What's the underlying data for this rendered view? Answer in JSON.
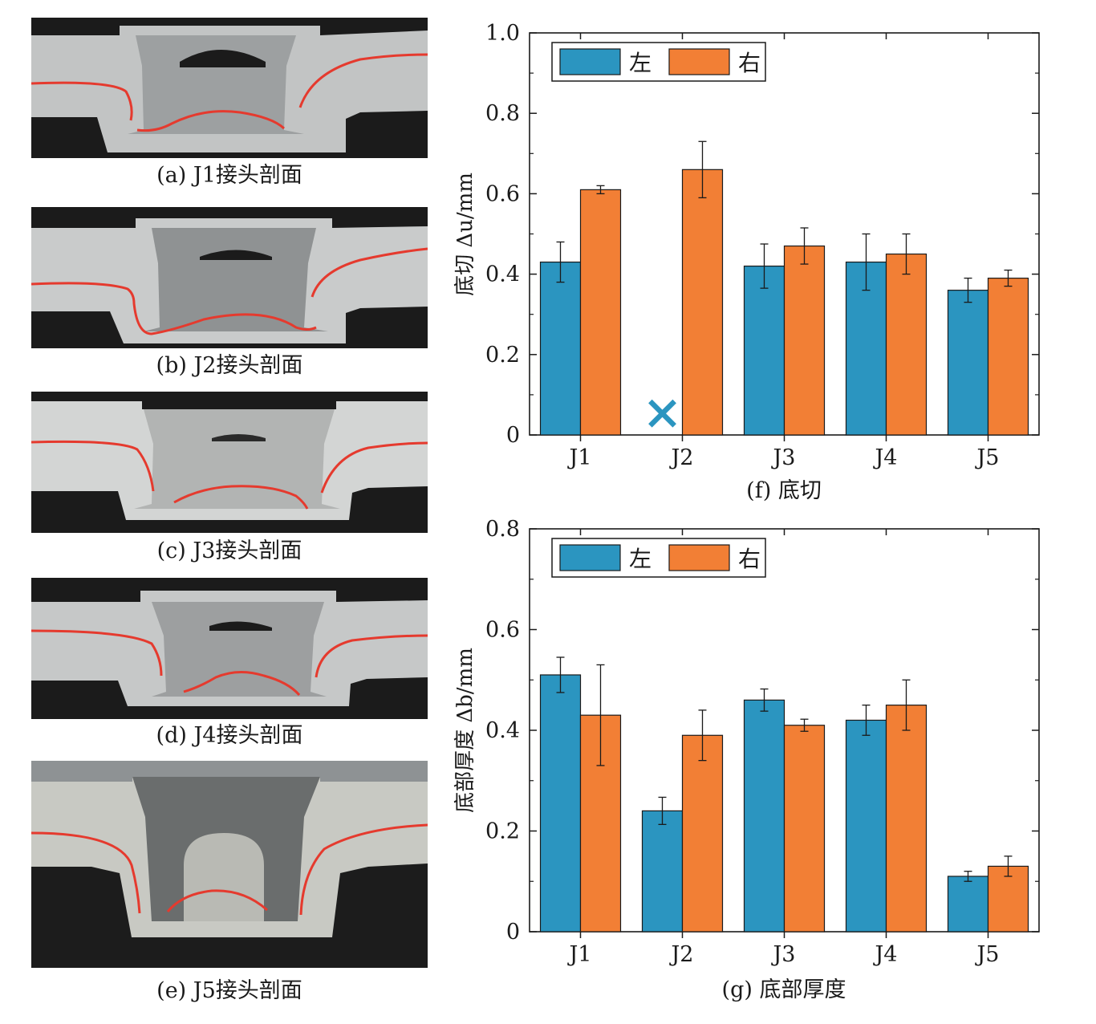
{
  "panels": [
    {
      "caption": "(a) J1接头剖面"
    },
    {
      "caption": "(b) J2接头剖面"
    },
    {
      "caption": "(c) J3接头剖面"
    },
    {
      "caption": "(d) J4接头剖面"
    },
    {
      "caption": "(e) J5接头剖面"
    }
  ],
  "colors": {
    "left": "#2b95c0",
    "right": "#f27f35",
    "curve": "#e53a2e",
    "missing": "#2b95c0"
  },
  "chart_data": [
    {
      "id": "f",
      "type": "bar",
      "title": "(f) 底切",
      "xlabel": "(f) 底切",
      "ylabel": "底切 Δu/mm",
      "ylim": [
        0,
        1.0
      ],
      "yticks": [
        0,
        0.2,
        0.4,
        0.6,
        0.8,
        1.0
      ],
      "ytick_labels": [
        "0",
        "0.2",
        "0.4",
        "0.6",
        "0.8",
        "1.0"
      ],
      "categories": [
        "J1",
        "J2",
        "J3",
        "J4",
        "J5"
      ],
      "legend_position": "top-left",
      "series": [
        {
          "name": "左",
          "values": [
            0.43,
            null,
            0.42,
            0.43,
            0.36
          ],
          "errors": [
            0.05,
            null,
            0.055,
            0.07,
            0.03
          ]
        },
        {
          "name": "右",
          "values": [
            0.61,
            0.66,
            0.47,
            0.45,
            0.39
          ],
          "errors": [
            0.01,
            0.07,
            0.045,
            0.05,
            0.02
          ]
        }
      ],
      "missing_marker": {
        "series": "左",
        "category": "J2",
        "symbol": "×"
      }
    },
    {
      "id": "g",
      "type": "bar",
      "title": "(g) 底部厚度",
      "xlabel": "(g) 底部厚度",
      "ylabel": "底部厚度 Δb/mm",
      "ylim": [
        0,
        0.8
      ],
      "yticks": [
        0,
        0.2,
        0.4,
        0.6,
        0.8
      ],
      "ytick_labels": [
        "0",
        "0.2",
        "0.4",
        "0.6",
        "0.8"
      ],
      "categories": [
        "J1",
        "J2",
        "J3",
        "J4",
        "J5"
      ],
      "legend_position": "top-left",
      "series": [
        {
          "name": "左",
          "values": [
            0.51,
            0.24,
            0.46,
            0.42,
            0.11
          ],
          "errors": [
            0.035,
            0.027,
            0.022,
            0.03,
            0.01
          ]
        },
        {
          "name": "右",
          "values": [
            0.43,
            0.39,
            0.41,
            0.45,
            0.13
          ],
          "errors": [
            0.1,
            0.05,
            0.012,
            0.05,
            0.02
          ]
        }
      ]
    }
  ]
}
